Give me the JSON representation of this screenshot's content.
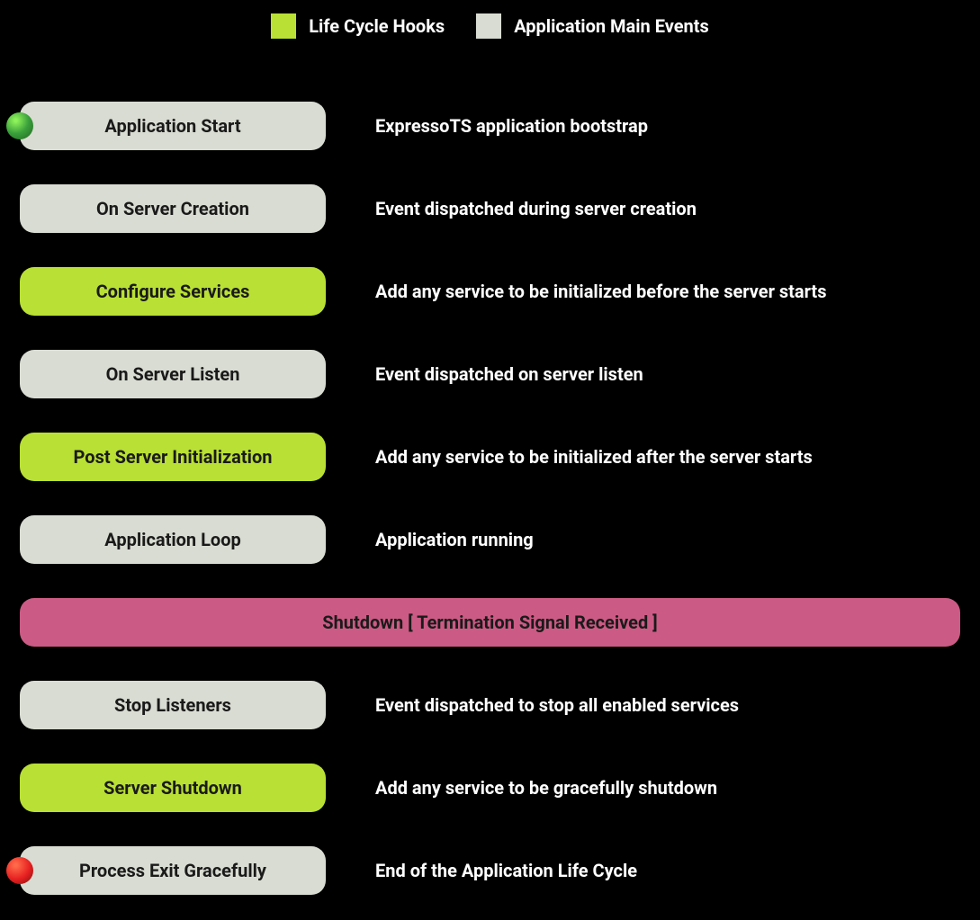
{
  "colors": {
    "hook": "#b9e034",
    "event": "#d9dcd2",
    "banner": "#cb5b84",
    "background": "#000000",
    "text_light": "#ffffff",
    "text_dark": "#1a1a1a"
  },
  "legend": {
    "items": [
      {
        "label": "Life Cycle Hooks",
        "color": "#b9e034"
      },
      {
        "label": "Application Main Events",
        "color": "#d9dcd2"
      }
    ]
  },
  "stages": [
    {
      "title": "Application Start",
      "description": "ExpressoTS application bootstrap",
      "type": "event",
      "dot": "start"
    },
    {
      "title": "On Server Creation",
      "description": "Event dispatched during server creation",
      "type": "event"
    },
    {
      "title": "Configure Services",
      "description": "Add any service to be initialized before the server starts",
      "type": "hook"
    },
    {
      "title": "On Server Listen",
      "description": "Event dispatched on server listen",
      "type": "event"
    },
    {
      "title": "Post Server Initialization",
      "description": "Add any service to be initialized after the server starts",
      "type": "hook"
    },
    {
      "title": "Application Loop",
      "description": "Application running",
      "type": "event"
    }
  ],
  "banner": {
    "title": "Shutdown [ Termination Signal Received ]",
    "color": "#cb5b84"
  },
  "post_stages": [
    {
      "title": "Stop Listeners",
      "description": "Event dispatched to stop all enabled services",
      "type": "event"
    },
    {
      "title": "Server Shutdown",
      "description": "Add  any service to be gracefully shutdown",
      "type": "hook"
    },
    {
      "title": "Process Exit Gracefully",
      "description": "End of the Application Life Cycle",
      "type": "event",
      "dot": "end"
    }
  ]
}
